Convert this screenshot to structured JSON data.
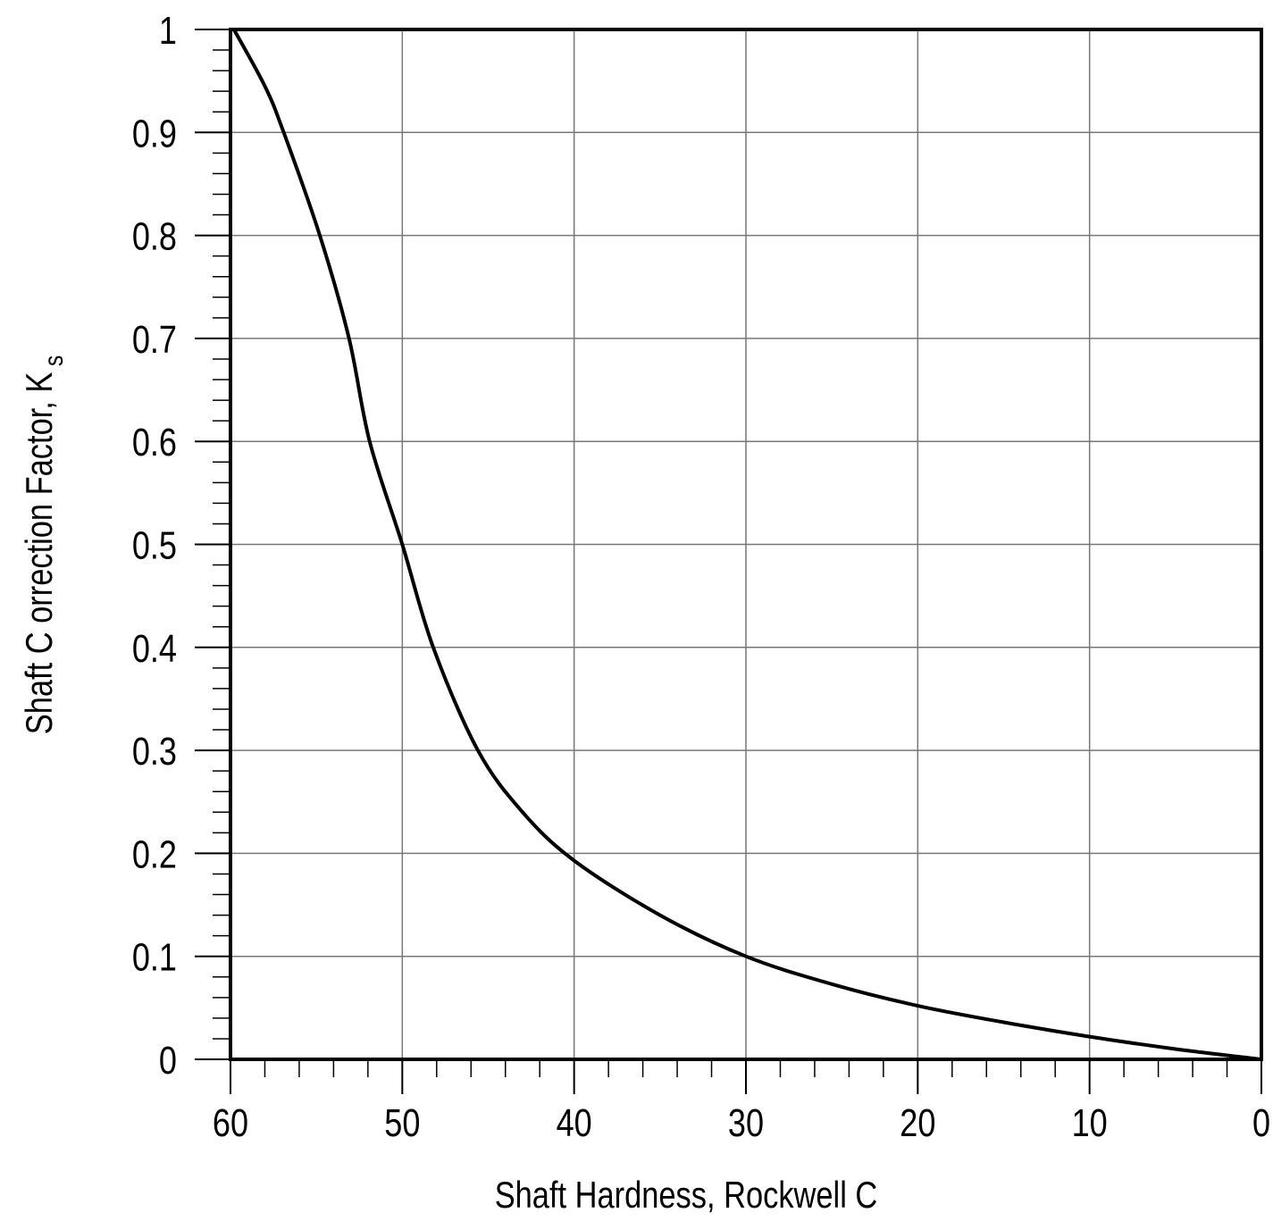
{
  "chart_data": {
    "type": "line",
    "title": "",
    "xlabel": "Shaft Hardness, Rockwell C",
    "ylabel": "Shaft C orrection Factor, K",
    "ylabel_subscript": "s",
    "xlim": [
      60,
      0
    ],
    "ylim": [
      0,
      1
    ],
    "x_reversed": true,
    "grid": true,
    "x_ticks": [
      60,
      50,
      40,
      30,
      20,
      10,
      0
    ],
    "x_tick_labels": [
      "60",
      "50",
      "40",
      "30",
      "20",
      "10",
      "0"
    ],
    "y_ticks": [
      0,
      0.1,
      0.2,
      0.3,
      0.4,
      0.5,
      0.6,
      0.7,
      0.8,
      0.9,
      1
    ],
    "y_tick_labels": [
      "0",
      "0.1",
      "0.2",
      "0.3",
      "0.4",
      "0.5",
      "0.6",
      "0.7",
      "0.8",
      "0.9",
      "1"
    ],
    "x_minor_step": 2,
    "y_minor_step": 0.02,
    "series": [
      {
        "color": "#000000",
        "x": [
          59.8,
          58,
          56.9,
          54.8,
          53.1,
          51.9,
          50,
          48.2,
          45.6,
          43,
          40,
          35,
          30,
          25,
          20,
          15,
          10,
          5,
          0
        ],
        "y": [
          1,
          0.945,
          0.9,
          0.8,
          0.7,
          0.6,
          0.5,
          0.4,
          0.3,
          0.24,
          0.193,
          0.14,
          0.1,
          0.073,
          0.052,
          0.036,
          0.022,
          0.01,
          0
        ]
      }
    ]
  }
}
